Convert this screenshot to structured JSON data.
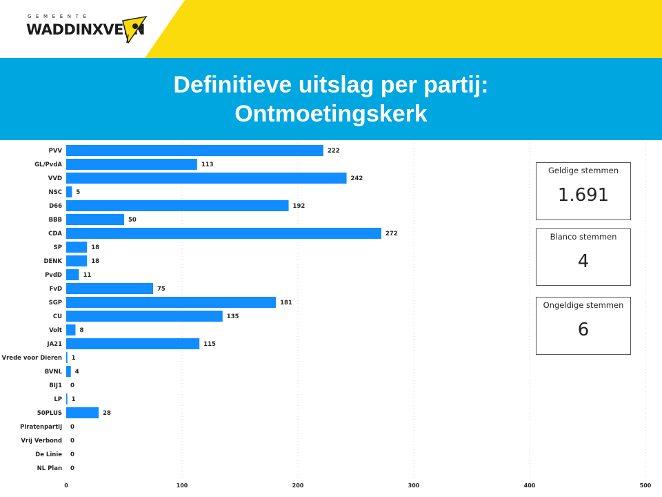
{
  "header": {
    "logo_sub": "GEMEENTE",
    "logo_main": "WADDINXVEEN",
    "brand_yellow": "#fbdb0c",
    "title_line1": "Definitieve uitslag per partij:",
    "title_line2": "Ontmoetingskerk",
    "title_bg": "#00a6e0"
  },
  "cards": [
    {
      "label": "Geldige stemmen",
      "value": "1.691"
    },
    {
      "label": "Blanco stemmen",
      "value": "4"
    },
    {
      "label": "Ongeldige stemmen",
      "value": "6"
    }
  ],
  "chart_data": {
    "type": "bar",
    "orientation": "horizontal",
    "title": "Definitieve uitslag per partij: Ontmoetingskerk",
    "xlabel": "",
    "ylabel": "",
    "xlim": [
      0,
      500
    ],
    "xticks": [
      0,
      100,
      200,
      300,
      400,
      500
    ],
    "bar_color": "#118dff",
    "grid": "vertical dotted",
    "categories": [
      "PVV",
      "GL/PvdA",
      "VVD",
      "NSC",
      "D66",
      "BBB",
      "CDA",
      "SP",
      "DENK",
      "PvdD",
      "FvD",
      "SGP",
      "CU",
      "Volt",
      "JA21",
      "Vrede voor Dieren",
      "BVNL",
      "BIJ1",
      "LP",
      "50PLUS",
      "Piratenpartij",
      "Vrij Verbond",
      "De Linie",
      "NL Plan"
    ],
    "values": [
      222,
      113,
      242,
      5,
      192,
      50,
      272,
      18,
      18,
      11,
      75,
      181,
      135,
      8,
      115,
      1,
      4,
      0,
      1,
      28,
      0,
      0,
      0,
      0
    ]
  }
}
